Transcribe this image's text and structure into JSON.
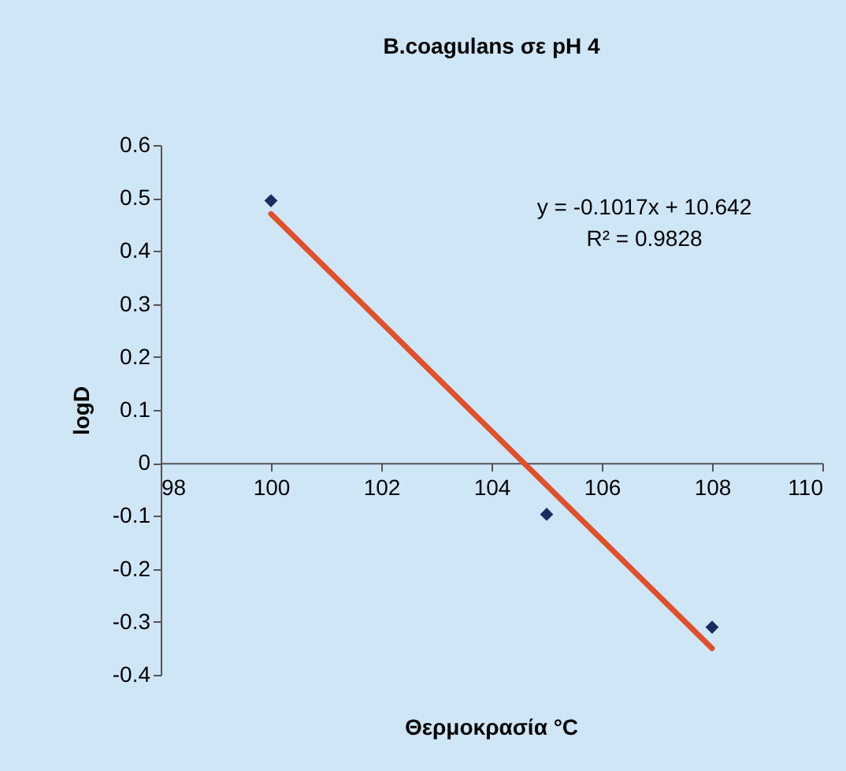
{
  "chart_data": {
    "type": "scatter",
    "title": "B.coagulans σε pH 4",
    "xlabel": "Θερμοκρασία °C",
    "ylabel": "logD",
    "x": [
      100,
      105,
      108
    ],
    "series": [
      {
        "color": "#1c2a5e",
        "values": [
          0.495,
          -0.097,
          -0.31
        ]
      },
      {
        "type": "line",
        "marker": "none",
        "color": "#e0502a",
        "x": [
          100,
          108
        ],
        "values": [
          0.47,
          -0.35
        ]
      }
    ],
    "annotations": [
      "y = -0.1017x + 10.642",
      "R² = 0.9828"
    ],
    "xlim": [
      98,
      110
    ],
    "xticks": [
      98,
      100,
      102,
      104,
      106,
      108,
      110
    ],
    "ylim": [
      -0.4,
      0.6
    ],
    "yticks": [
      -0.4,
      -0.3,
      -0.2,
      -0.1,
      0,
      0.1,
      0.2,
      0.3,
      0.4,
      0.5,
      0.6
    ],
    "marker": "diamond",
    "grid": false
  }
}
